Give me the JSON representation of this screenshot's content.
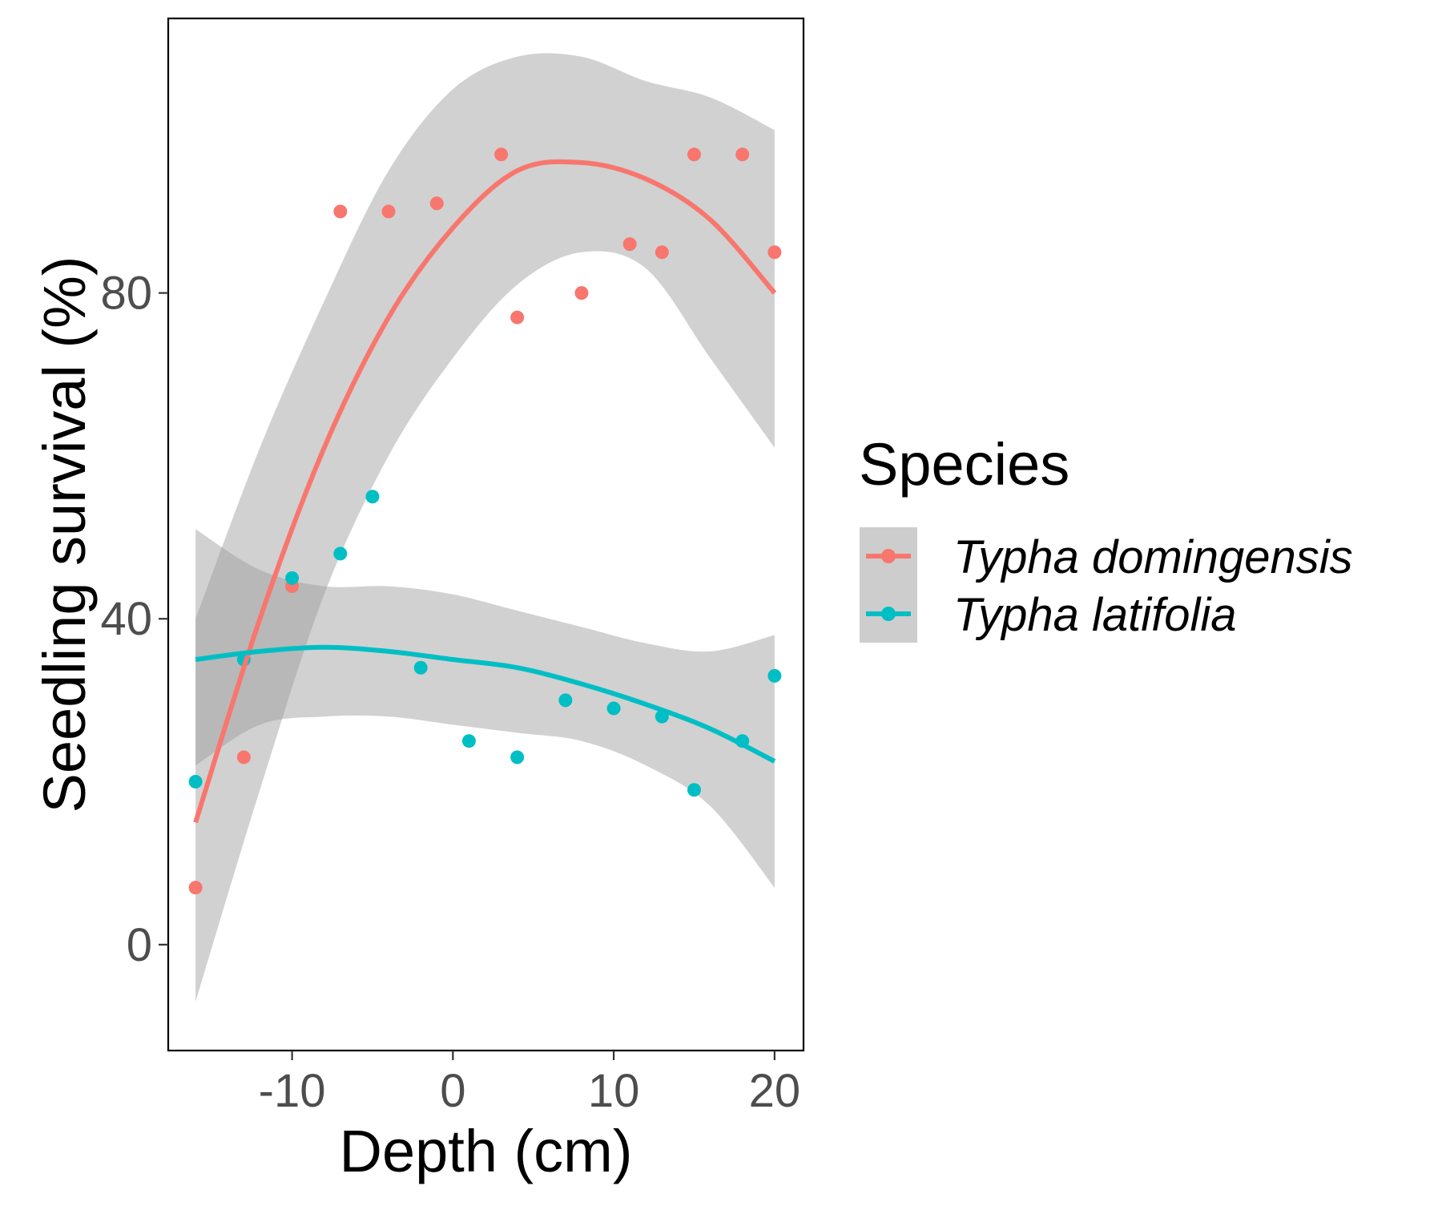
{
  "chart_data": {
    "type": "scatter",
    "title": "",
    "xlabel": "Depth (cm)",
    "ylabel": "Seedling survival (%)",
    "xlim": [
      -17.7,
      21.8
    ],
    "ylim": [
      -13.0,
      113.7
    ],
    "x_ticks": [
      -10,
      0,
      10,
      20
    ],
    "x_tick_labels": [
      "-10",
      "0",
      "10",
      "20"
    ],
    "y_ticks": [
      0,
      40,
      80
    ],
    "y_tick_labels": [
      "0",
      "40",
      "80"
    ],
    "grid": false,
    "legend": {
      "title": "Species",
      "position": "right"
    },
    "series": [
      {
        "name": "Typha domingensis",
        "color": "#F8766D",
        "points": [
          {
            "x": -16,
            "y": 7
          },
          {
            "x": -13,
            "y": 23
          },
          {
            "x": -10,
            "y": 44
          },
          {
            "x": -7,
            "y": 90
          },
          {
            "x": -4,
            "y": 90
          },
          {
            "x": -1,
            "y": 91
          },
          {
            "x": 3,
            "y": 97
          },
          {
            "x": 4,
            "y": 77
          },
          {
            "x": 8,
            "y": 80
          },
          {
            "x": 11,
            "y": 86
          },
          {
            "x": 13,
            "y": 85
          },
          {
            "x": 15,
            "y": 97
          },
          {
            "x": 18,
            "y": 97
          },
          {
            "x": 20,
            "y": 85
          }
        ],
        "fit_curve": {
          "x": [
            -16,
            -12,
            -8,
            -4,
            0,
            4,
            8,
            12,
            16,
            20
          ],
          "y": [
            15,
            40,
            61,
            77,
            88,
            95,
            96,
            94,
            89,
            80
          ],
          "ci_upper": [
            40,
            61,
            79,
            95,
            105,
            109,
            109,
            106,
            104,
            100
          ],
          "ci_lower": [
            -7,
            19,
            43,
            60,
            72,
            81,
            85,
            83,
            72,
            61
          ]
        }
      },
      {
        "name": "Typha latifolia",
        "color": "#00BFC4",
        "points": [
          {
            "x": -16,
            "y": 20
          },
          {
            "x": -13,
            "y": 35
          },
          {
            "x": -10,
            "y": 45
          },
          {
            "x": -7,
            "y": 48
          },
          {
            "x": -5,
            "y": 55
          },
          {
            "x": -2,
            "y": 34
          },
          {
            "x": 1,
            "y": 25
          },
          {
            "x": 4,
            "y": 23
          },
          {
            "x": 7,
            "y": 30
          },
          {
            "x": 10,
            "y": 29
          },
          {
            "x": 13,
            "y": 28
          },
          {
            "x": 15,
            "y": 19
          },
          {
            "x": 18,
            "y": 25
          },
          {
            "x": 20,
            "y": 33
          }
        ],
        "fit_curve": {
          "x": [
            -16,
            -12,
            -8,
            -4,
            0,
            4,
            8,
            12,
            16,
            20
          ],
          "y": [
            35,
            36,
            36.5,
            36,
            35,
            34,
            32,
            29.5,
            26.5,
            22.5
          ],
          "ci_upper": [
            51,
            46,
            44,
            44,
            43,
            41,
            39,
            37,
            36,
            38
          ],
          "ci_lower": [
            22,
            27,
            28,
            28,
            27,
            26,
            25,
            22,
            17,
            7
          ]
        }
      }
    ]
  }
}
